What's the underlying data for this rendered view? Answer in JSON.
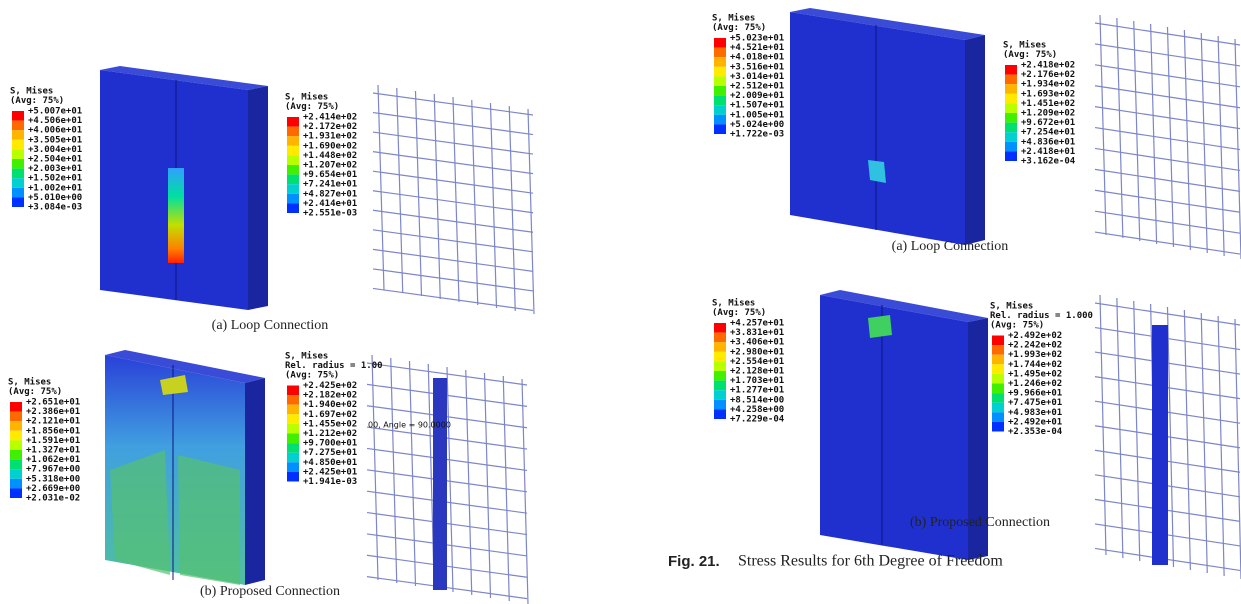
{
  "panels": [
    {
      "caption": "(a) Loop Connection",
      "legends": [
        {
          "title": [
            "S, Mises",
            "(Avg: 75%)"
          ],
          "values": [
            "+5.007e+01",
            "+4.506e+01",
            "+4.006e+01",
            "+3.505e+01",
            "+3.004e+01",
            "+2.504e+01",
            "+2.003e+01",
            "+1.502e+01",
            "+1.002e+01",
            "+5.010e+00",
            "+3.084e-03"
          ]
        },
        {
          "title": [
            "S, Mises",
            "(Avg: 75%)"
          ],
          "values": [
            "+2.414e+02",
            "+2.172e+02",
            "+1.931e+02",
            "+1.690e+02",
            "+1.448e+02",
            "+1.207e+02",
            "+9.654e+01",
            "+7.241e+01",
            "+4.827e+01",
            "+2.414e+01",
            "+2.551e-03"
          ]
        }
      ]
    },
    {
      "caption": "(b) Proposed Connection",
      "annotation": "00, Angle = 90.0000",
      "legends": [
        {
          "title": [
            "S, Mises",
            "(Avg: 75%)"
          ],
          "values": [
            "+2.651e+01",
            "+2.386e+01",
            "+2.121e+01",
            "+1.856e+01",
            "+1.591e+01",
            "+1.327e+01",
            "+1.062e+01",
            "+7.967e+00",
            "+5.318e+00",
            "+2.669e+00",
            "+2.031e-02"
          ]
        },
        {
          "title": [
            "S, Mises",
            "Rel. radius = 1.00",
            "(Avg: 75%)"
          ],
          "values": [
            "+2.425e+02",
            "+2.182e+02",
            "+1.940e+02",
            "+1.697e+02",
            "+1.455e+02",
            "+1.212e+02",
            "+9.700e+01",
            "+7.275e+01",
            "+4.850e+01",
            "+2.425e+01",
            "+1.941e-03"
          ]
        }
      ]
    },
    {
      "caption": "(a) Loop Connection",
      "legends": [
        {
          "title": [
            "S, Mises",
            "(Avg: 75%)"
          ],
          "values": [
            "+5.023e+01",
            "+4.521e+01",
            "+4.018e+01",
            "+3.516e+01",
            "+3.014e+01",
            "+2.512e+01",
            "+2.009e+01",
            "+1.507e+01",
            "+1.005e+01",
            "+5.024e+00",
            "+1.722e-03"
          ]
        },
        {
          "title": [
            "S, Mises",
            "(Avg: 75%)"
          ],
          "values": [
            "+2.418e+02",
            "+2.176e+02",
            "+1.934e+02",
            "+1.693e+02",
            "+1.451e+02",
            "+1.209e+02",
            "+9.672e+01",
            "+7.254e+01",
            "+4.836e+01",
            "+2.418e+01",
            "+3.162e-04"
          ]
        }
      ]
    },
    {
      "caption": "(b) Proposed Connection",
      "legends": [
        {
          "title": [
            "S, Mises",
            "(Avg: 75%)"
          ],
          "values": [
            "+4.257e+01",
            "+3.831e+01",
            "+3.406e+01",
            "+2.980e+01",
            "+2.554e+01",
            "+2.128e+01",
            "+1.703e+01",
            "+1.277e+01",
            "+8.514e+00",
            "+4.258e+00",
            "+7.229e-04"
          ]
        },
        {
          "title": [
            "S, Mises",
            "Rel. radius = 1.000",
            "(Avg: 75%)"
          ],
          "values": [
            "+2.492e+02",
            "+2.242e+02",
            "+1.993e+02",
            "+1.744e+02",
            "+1.495e+02",
            "+1.246e+02",
            "+9.966e+01",
            "+7.475e+01",
            "+4.983e+01",
            "+2.492e+01",
            "+2.353e-04"
          ]
        }
      ]
    }
  ],
  "figure_caption": {
    "label": "Fig. 21.",
    "text": "Stress Results for 6th Degree of Freedom"
  }
}
